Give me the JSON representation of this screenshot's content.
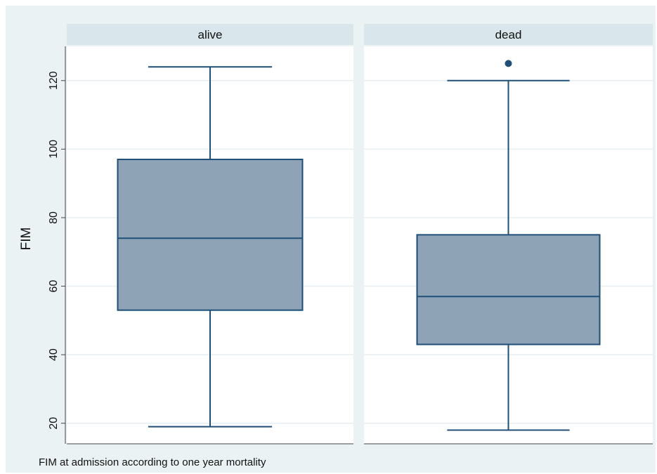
{
  "chart_data": {
    "type": "box",
    "ylabel": "FIM",
    "note": "FIM at admission according to one year mortality",
    "ylim": [
      14,
      130
    ],
    "yticks": [
      20,
      40,
      60,
      80,
      100,
      120
    ],
    "grid": true,
    "panels": [
      {
        "name": "alive",
        "whisker_low": 19,
        "q1": 53,
        "median": 74,
        "q3": 97,
        "whisker_high": 124,
        "outliers": []
      },
      {
        "name": "dead",
        "whisker_low": 18,
        "q1": 43,
        "median": 57,
        "q3": 75,
        "whisker_high": 120,
        "outliers": [
          125
        ]
      }
    ],
    "colors": {
      "background": "#eaf2f3",
      "plot_area": "#ffffff",
      "header": "#d9e6eb",
      "box_fill": "#8ea3b6",
      "box_line": "#1f4e79",
      "grid": "#e7eef1"
    }
  }
}
